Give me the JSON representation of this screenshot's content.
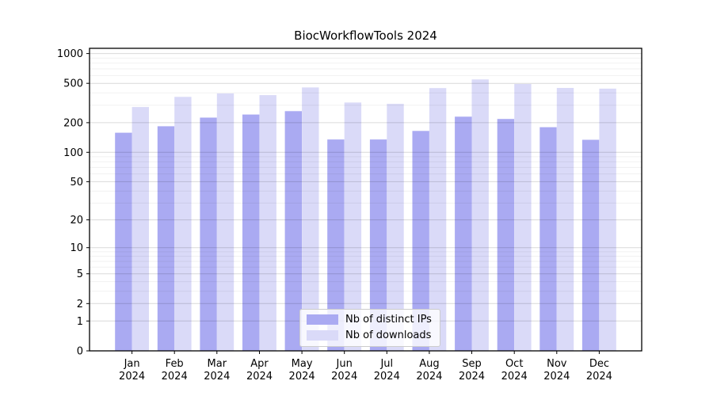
{
  "chart_data": {
    "type": "bar",
    "title": "BiocWorkflowTools 2024",
    "categories": [
      "Jan",
      "Feb",
      "Mar",
      "Apr",
      "May",
      "Jun",
      "Jul",
      "Aug",
      "Sep",
      "Oct",
      "Nov",
      "Dec"
    ],
    "year": "2024",
    "series": [
      {
        "name": "Nb of distinct IPs",
        "color": "#aaaaf2",
        "values": [
          158,
          184,
          225,
          242,
          262,
          135,
          135,
          165,
          230,
          218,
          180,
          134
        ]
      },
      {
        "name": "Nb of downloads",
        "color": "#dadaf8",
        "values": [
          288,
          365,
          395,
          380,
          455,
          320,
          310,
          448,
          548,
          493,
          450,
          442
        ]
      }
    ],
    "y_ticks": [
      0,
      1,
      2,
      5,
      10,
      20,
      50,
      100,
      200,
      500,
      1000
    ],
    "y_minor_ticks": [
      3,
      4,
      6,
      7,
      8,
      9,
      30,
      40,
      60,
      70,
      80,
      90,
      300,
      400,
      600,
      700,
      800,
      900
    ],
    "y_scale": "log1p",
    "ylim": [
      0,
      1130
    ],
    "grid": true,
    "legend_position": "lower center",
    "axis_color": "#000000",
    "major_grid_color": "rgba(0,0,0,0.15)",
    "minor_grid_color": "rgba(0,0,0,0.06)"
  }
}
